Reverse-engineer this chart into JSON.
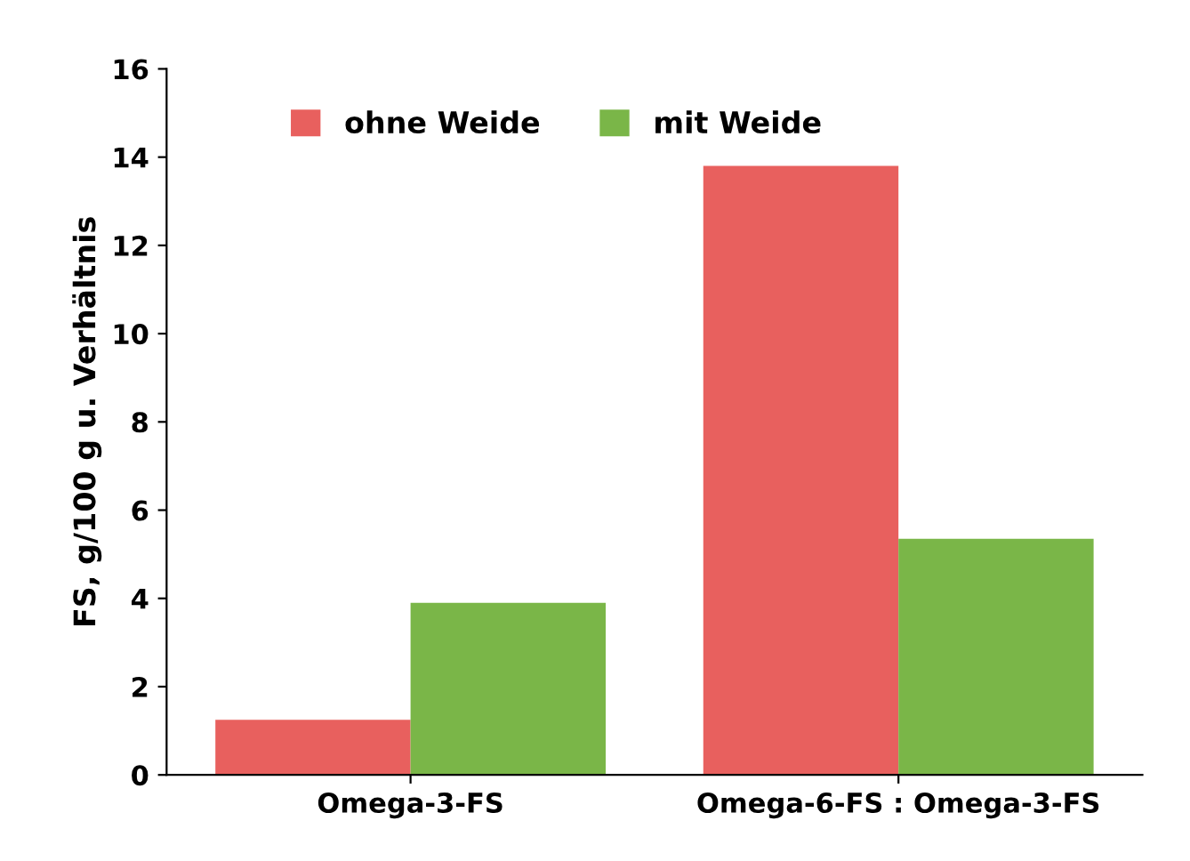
{
  "chart_data": {
    "type": "bar",
    "ylabel": "FS, g/100 g u. Verhältnis",
    "categories": [
      "Omega-3-FS",
      "Omega-6-FS : Omega-3-FS"
    ],
    "series": [
      {
        "name": "ohne Weide",
        "color": "#e8605e",
        "values": [
          1.25,
          13.8
        ]
      },
      {
        "name": "mit Weide",
        "color": "#7ab648",
        "values": [
          3.9,
          5.35
        ]
      }
    ],
    "ylim": [
      0,
      16
    ],
    "yticks": [
      0,
      2,
      4,
      6,
      8,
      10,
      12,
      14,
      16
    ],
    "grid": false,
    "legend": "top left"
  }
}
